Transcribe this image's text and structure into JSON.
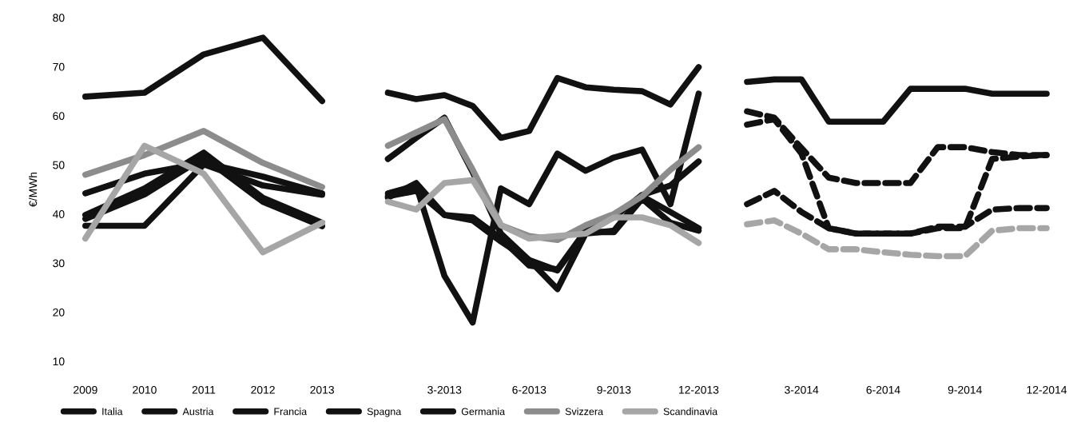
{
  "chart_data": [
    {
      "type": "line",
      "ylabel": "€/MWh",
      "categories": [
        "2009",
        "2010",
        "2011",
        "2012",
        "2013"
      ],
      "ylim": [
        10,
        80
      ],
      "yticks": [
        10,
        20,
        30,
        40,
        50,
        60,
        70,
        80
      ],
      "grid": false,
      "legend": "bottom",
      "line_style": "solid",
      "marker": "none",
      "series": [
        {
          "name": "Italia",
          "color": "#111111",
          "values": [
            63.9,
            64.7,
            72.5,
            75.9,
            63.0
          ]
        },
        {
          "name": "Austria",
          "color": "#111111",
          "values": [
            44.2,
            48.2,
            50.4,
            47.6,
            44.2
          ]
        },
        {
          "name": "Francia",
          "color": "#111111",
          "values": [
            37.6,
            37.6,
            50.1,
            45.8,
            43.9
          ]
        },
        {
          "name": "Spagna",
          "color": "#111111",
          "values": [
            39.8,
            45.2,
            52.5,
            43.3,
            38.2
          ]
        },
        {
          "name": "Germania",
          "color": "#111111",
          "values": [
            39.0,
            44.0,
            51.5,
            42.5,
            37.5
          ]
        },
        {
          "name": "Svizzera",
          "color": "#8c8c8c",
          "values": [
            48.0,
            52.0,
            56.9,
            50.4,
            45.5
          ]
        },
        {
          "name": "Scandinavia",
          "color": "#a6a6a6",
          "values": [
            35.0,
            53.9,
            48.2,
            32.2,
            38.2
          ]
        }
      ]
    },
    {
      "type": "line",
      "categories": [
        null,
        null,
        "3-2013",
        null,
        null,
        "6-2013",
        null,
        null,
        "9-2013",
        null,
        null,
        "12-2013"
      ],
      "ylim": [
        10,
        80
      ],
      "tick_labels": "x",
      "grid": false,
      "line_style": "solid",
      "marker": "none",
      "series": [
        {
          "color": "#111111",
          "values": [
            64.7,
            63.4,
            64.2,
            62.0,
            55.5,
            56.9,
            67.7,
            65.8,
            65.3,
            65.0,
            62.3,
            69.9
          ]
        },
        {
          "color": "#111111",
          "values": [
            43.6,
            44.7,
            39.8,
            39.3,
            35.0,
            29.5,
            28.7,
            36.6,
            39.3,
            43.9,
            45.8,
            50.7
          ]
        },
        {
          "color": "#111111",
          "values": [
            44.2,
            45.8,
            27.4,
            17.9,
            45.2,
            42.0,
            52.3,
            48.8,
            51.5,
            53.1,
            42.0,
            64.5
          ]
        },
        {
          "color": "#111111",
          "values": [
            51.2,
            55.5,
            59.6,
            48.5,
            36.0,
            30.6,
            24.7,
            36.0,
            36.6,
            43.6,
            40.4,
            37.1
          ]
        },
        {
          "color": "#111111",
          "values": [
            43.3,
            46.3,
            39.8,
            38.7,
            34.4,
            30.6,
            28.5,
            36.3,
            36.3,
            43.1,
            38.2,
            36.6
          ]
        },
        {
          "color": "#8c8c8c",
          "values": [
            53.9,
            56.6,
            59.3,
            49.0,
            37.7,
            35.5,
            34.7,
            37.7,
            40.0,
            43.6,
            49.0,
            53.6
          ]
        },
        {
          "color": "#a6a6a6",
          "values": [
            42.5,
            40.9,
            46.3,
            46.9,
            37.7,
            35.0,
            35.5,
            36.0,
            39.3,
            39.3,
            37.7,
            34.1
          ]
        }
      ]
    },
    {
      "type": "line",
      "categories": [
        null,
        null,
        "3-2014",
        null,
        null,
        "6-2014",
        null,
        null,
        "9-2014",
        null,
        null,
        "12-2014"
      ],
      "ylim": [
        10,
        80
      ],
      "tick_labels": "x",
      "grid": false,
      "line_style": "dashed",
      "marker": "none",
      "series": [
        {
          "color": "#111111",
          "line_style": "solid",
          "values": [
            66.9,
            67.4,
            67.4,
            58.8,
            58.8,
            58.8,
            65.5,
            65.5,
            65.5,
            64.5,
            64.5,
            64.5
          ]
        },
        {
          "color": "#111111",
          "values": [
            42.0,
            44.7,
            40.4,
            37.1,
            36.0,
            36.0,
            36.0,
            37.4,
            37.4,
            40.9,
            41.2,
            41.2
          ]
        },
        {
          "color": "#111111",
          "values": [
            58.2,
            59.3,
            52.3,
            37.1,
            36.0,
            36.0,
            36.0,
            37.1,
            37.1,
            51.2,
            51.7,
            52.0
          ]
        },
        {
          "color": "#111111",
          "values": [
            60.9,
            59.6,
            53.4,
            47.4,
            46.3,
            46.3,
            46.3,
            53.6,
            53.6,
            52.6,
            52.0,
            52.0
          ]
        },
        {
          "color": "#a6a6a6",
          "values": [
            37.9,
            38.7,
            36.0,
            32.8,
            32.8,
            32.2,
            31.7,
            31.4,
            31.4,
            36.6,
            37.1,
            37.1
          ]
        }
      ]
    }
  ]
}
